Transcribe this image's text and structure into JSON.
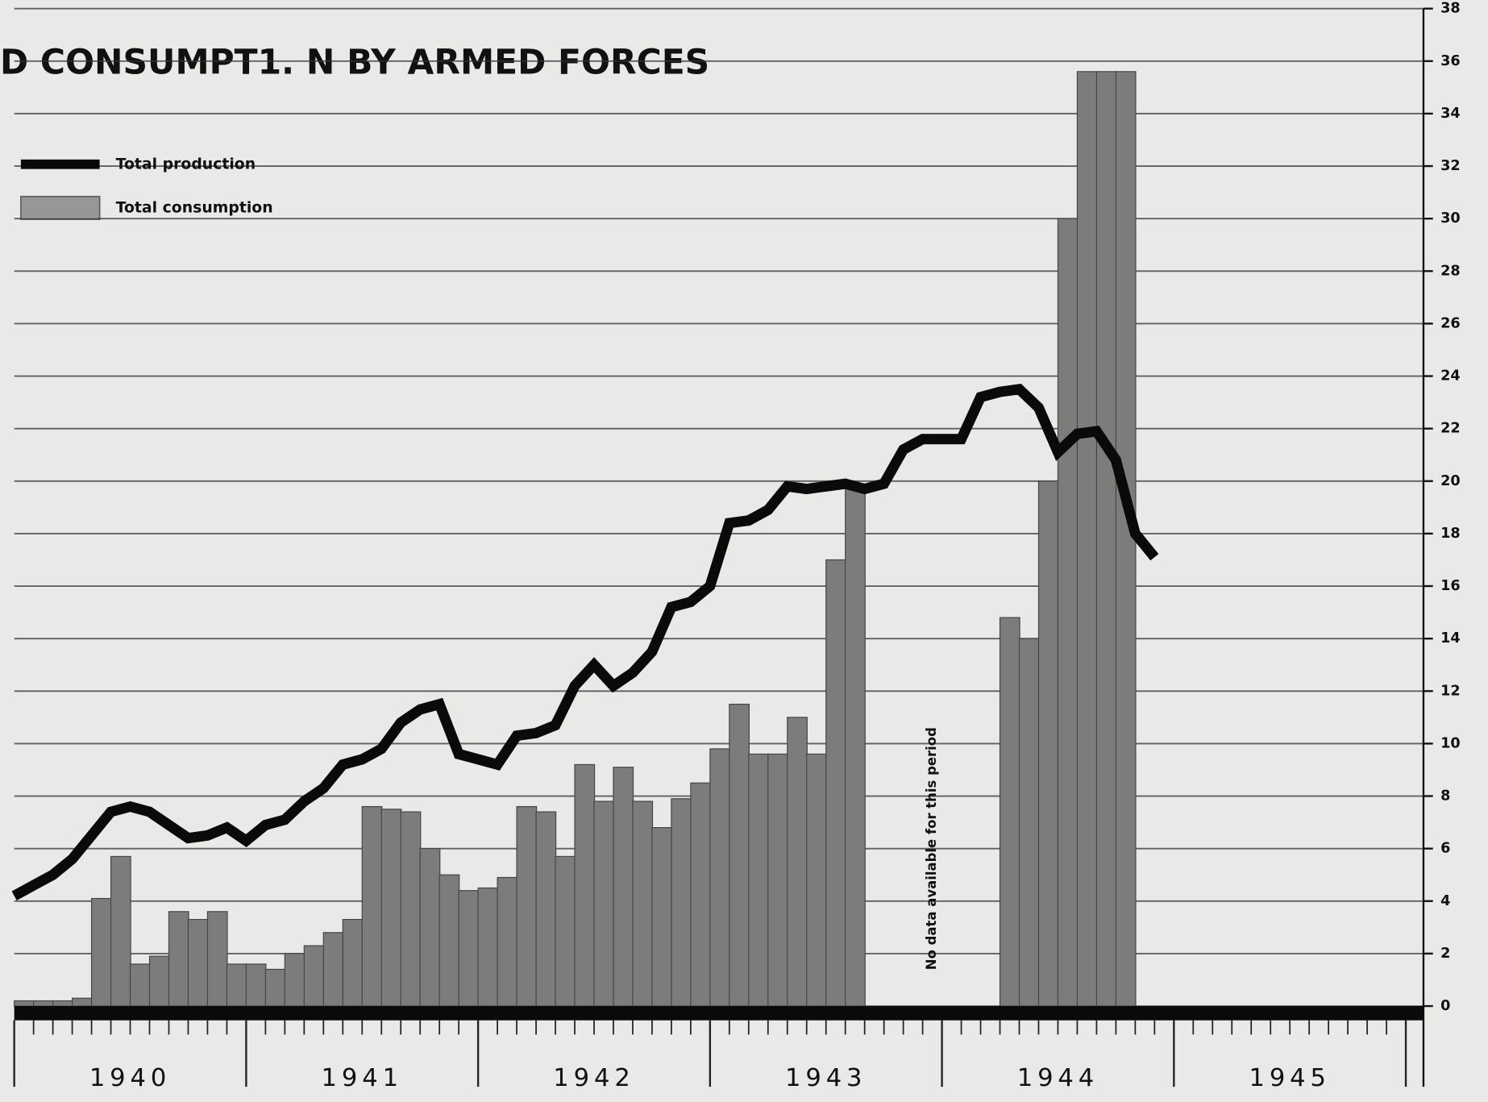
{
  "chart_data": {
    "type": "bar-line",
    "title": "D CONSUMPT1.  N BY ARMED FORCES",
    "annotation": "No data available for this period",
    "years": [
      "1940",
      "1941",
      "1942",
      "1943",
      "1944",
      "1945"
    ],
    "ylim": [
      0,
      38
    ],
    "yticks": [
      0,
      2,
      4,
      6,
      8,
      10,
      12,
      14,
      16,
      18,
      20,
      22,
      24,
      26,
      28,
      30,
      32,
      34,
      36,
      38
    ],
    "grid": true,
    "legend": "upper left",
    "series": [
      {
        "name": "Total production",
        "kind": "line",
        "color": "#0a0a0a",
        "values": [
          4.2,
          4.6,
          5.0,
          5.6,
          6.5,
          7.4,
          7.6,
          7.4,
          6.9,
          6.4,
          6.5,
          6.8,
          6.3,
          6.9,
          7.1,
          7.8,
          8.3,
          9.2,
          9.4,
          9.8,
          10.8,
          11.3,
          11.5,
          9.6,
          9.4,
          9.2,
          10.3,
          10.4,
          10.7,
          12.2,
          13.0,
          12.2,
          12.7,
          13.5,
          15.2,
          15.4,
          16.0,
          18.4,
          18.5,
          18.9,
          19.8,
          19.7,
          19.8,
          19.9,
          19.7,
          19.9,
          21.2,
          21.6,
          21.6,
          21.6,
          23.2,
          23.4,
          23.5,
          22.8,
          21.1,
          21.8,
          21.9,
          20.8,
          18.0,
          17.1,
          null,
          null,
          null,
          null,
          null,
          null,
          null,
          null,
          null,
          null,
          null,
          null
        ]
      },
      {
        "name": "Total consumption",
        "kind": "bar",
        "color": "#7c7c7a",
        "values": [
          0.2,
          0.2,
          0.2,
          0.3,
          4.1,
          5.7,
          1.6,
          1.9,
          3.6,
          3.3,
          3.6,
          1.6,
          1.6,
          1.4,
          2.0,
          2.3,
          2.8,
          3.3,
          7.6,
          7.5,
          7.4,
          6.0,
          5.0,
          4.4,
          4.5,
          4.9,
          7.6,
          7.4,
          5.7,
          9.2,
          7.8,
          9.1,
          7.8,
          6.8,
          7.9,
          8.5,
          9.8,
          11.5,
          9.6,
          9.6,
          11.0,
          9.6,
          17.0,
          19.8,
          null,
          null,
          null,
          null,
          null,
          null,
          null,
          14.8,
          14.0,
          20.0,
          30.0,
          35.6,
          35.6,
          35.6,
          null,
          null,
          null,
          null,
          null,
          null,
          null,
          null,
          null,
          null,
          null,
          null,
          null,
          null
        ]
      }
    ]
  }
}
